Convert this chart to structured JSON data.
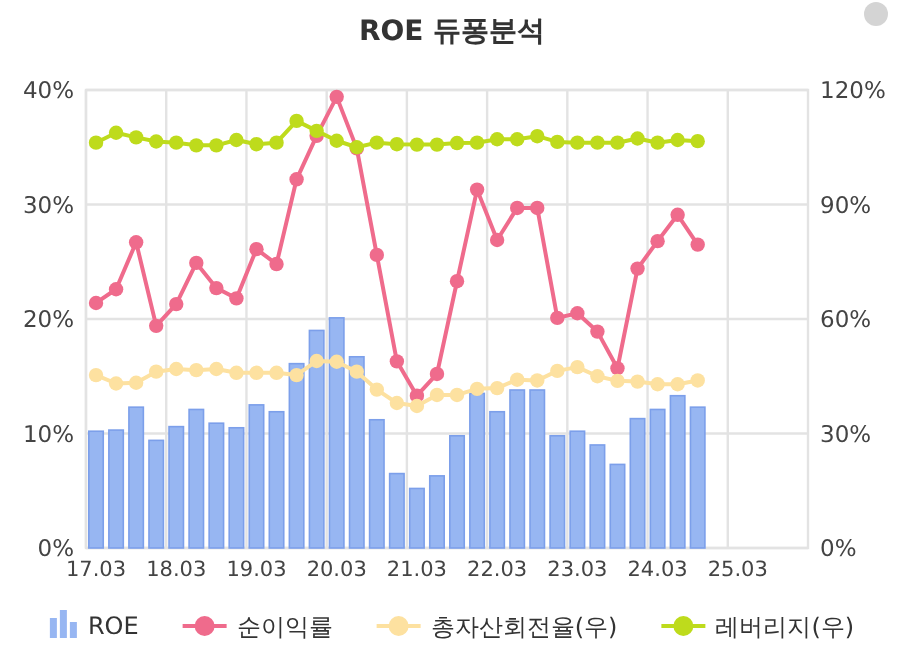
{
  "chart_data": {
    "type": "bar",
    "title": "ROE 듀퐁분석",
    "categories": [
      "17.03",
      null,
      null,
      null,
      "18.03",
      null,
      null,
      null,
      "19.03",
      null,
      null,
      null,
      "20.03",
      null,
      null,
      null,
      "21.03",
      null,
      null,
      null,
      "22.03",
      null,
      null,
      null,
      "23.03",
      null,
      null,
      null,
      "24.03",
      null,
      null,
      null,
      "25.03",
      null,
      null,
      null
    ],
    "series": [
      {
        "name": "ROE",
        "color": "#97b6f2",
        "values": [
          10.2,
          10.3,
          12.3,
          9.4,
          10.6,
          12.1,
          10.9,
          10.5,
          12.5,
          11.9,
          16.1,
          19.0,
          20.1,
          16.7,
          11.2,
          6.5,
          5.2,
          6.3,
          9.8,
          13.5,
          11.9,
          13.8,
          13.8,
          9.8,
          10.2,
          9.0,
          7.3,
          11.3,
          12.1,
          13.3,
          12.3,
          null,
          null,
          null,
          null,
          null
        ]
      },
      {
        "name": "순이익률",
        "type": "line",
        "color": "#ef6b8c",
        "values": [
          21.4,
          22.6,
          26.7,
          19.4,
          21.3,
          24.9,
          22.7,
          21.8,
          26.1,
          24.8,
          32.2,
          36.0,
          39.4,
          34.9,
          25.6,
          16.3,
          13.3,
          15.2,
          23.3,
          31.3,
          26.9,
          29.7,
          29.7,
          20.1,
          20.5,
          18.9,
          15.7,
          24.4,
          26.8,
          29.1,
          26.5,
          null,
          null,
          null,
          null,
          null
        ]
      },
      {
        "name": "총자산회전율(우)",
        "type": "line",
        "axis": "y2",
        "color": "#fde1a0",
        "values": [
          45.3,
          43.1,
          43.3,
          46.2,
          46.9,
          46.6,
          46.9,
          45.9,
          45.9,
          45.9,
          45.3,
          49.0,
          48.8,
          46.2,
          41.5,
          38.0,
          37.2,
          40.1,
          40.1,
          41.7,
          41.9,
          44.1,
          43.9,
          46.4,
          47.4,
          45.0,
          43.8,
          43.6,
          42.9,
          42.9,
          43.9,
          null,
          null,
          null,
          null,
          null
        ]
      },
      {
        "name": "레버리지(우)",
        "type": "line",
        "axis": "y2",
        "color": "#bedb1c",
        "values": [
          106.2,
          108.8,
          107.6,
          106.5,
          106.2,
          105.5,
          105.5,
          106.9,
          105.8,
          106.2,
          111.9,
          109.3,
          106.7,
          105.0,
          106.2,
          105.8,
          105.7,
          105.7,
          106.1,
          106.2,
          107.1,
          107.1,
          107.9,
          106.4,
          106.2,
          106.2,
          106.2,
          107.3,
          106.2,
          106.9,
          106.6,
          null,
          null,
          null,
          null,
          null
        ]
      }
    ],
    "ylim": [
      0,
      40
    ],
    "yticks": [
      {
        "value": 0,
        "label": "0%"
      },
      {
        "value": 10,
        "label": "10%"
      },
      {
        "value": 20,
        "label": "20%"
      },
      {
        "value": 30,
        "label": "30%"
      },
      {
        "value": 40,
        "label": "40%"
      }
    ],
    "y2lim": [
      0,
      120
    ],
    "y2ticks": [
      {
        "value": 0,
        "label": "0%"
      },
      {
        "value": 30,
        "label": "30%"
      },
      {
        "value": 60,
        "label": "60%"
      },
      {
        "value": 90,
        "label": "90%"
      },
      {
        "value": 120,
        "label": "120%"
      }
    ],
    "grid": true,
    "legend": "bottom",
    "marker": "circle"
  }
}
